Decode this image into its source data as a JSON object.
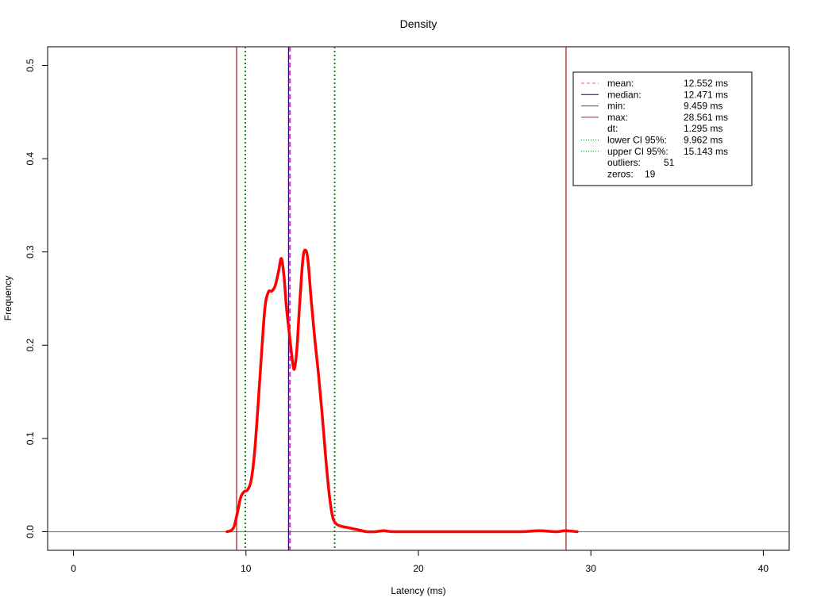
{
  "chart_data": {
    "type": "line",
    "title": "Density",
    "xlabel": "Latency (ms)",
    "ylabel": "Frequency",
    "xlim": [
      -1.5,
      41.5
    ],
    "ylim": [
      -0.02,
      0.52
    ],
    "x_ticks": [
      0,
      10,
      20,
      30,
      40
    ],
    "x_tick_labels": [
      "0",
      "10",
      "20",
      "30",
      "40"
    ],
    "y_ticks": [
      0.0,
      0.1,
      0.2,
      0.3,
      0.4,
      0.5
    ],
    "y_tick_labels": [
      "0.0",
      "0.1",
      "0.2",
      "0.3",
      "0.4",
      "0.5"
    ],
    "grid": false,
    "series": [
      {
        "color": "#ff0000",
        "points": [
          [
            8.9,
            0.0
          ],
          [
            9.1,
            0.001
          ],
          [
            9.3,
            0.005
          ],
          [
            9.5,
            0.02
          ],
          [
            9.7,
            0.037
          ],
          [
            9.9,
            0.043
          ],
          [
            10.1,
            0.045
          ],
          [
            10.3,
            0.055
          ],
          [
            10.5,
            0.085
          ],
          [
            10.7,
            0.135
          ],
          [
            10.9,
            0.19
          ],
          [
            11.1,
            0.24
          ],
          [
            11.3,
            0.257
          ],
          [
            11.5,
            0.258
          ],
          [
            11.7,
            0.264
          ],
          [
            11.9,
            0.28
          ],
          [
            12.05,
            0.293
          ],
          [
            12.2,
            0.275
          ],
          [
            12.35,
            0.24
          ],
          [
            12.5,
            0.215
          ],
          [
            12.65,
            0.19
          ],
          [
            12.8,
            0.174
          ],
          [
            12.95,
            0.195
          ],
          [
            13.1,
            0.24
          ],
          [
            13.3,
            0.292
          ],
          [
            13.45,
            0.302
          ],
          [
            13.6,
            0.29
          ],
          [
            13.8,
            0.245
          ],
          [
            14.0,
            0.205
          ],
          [
            14.2,
            0.17
          ],
          [
            14.4,
            0.13
          ],
          [
            14.6,
            0.085
          ],
          [
            14.8,
            0.045
          ],
          [
            15.0,
            0.018
          ],
          [
            15.2,
            0.009
          ],
          [
            15.5,
            0.006
          ],
          [
            16.0,
            0.004
          ],
          [
            16.5,
            0.002
          ],
          [
            17.0,
            0.0
          ],
          [
            17.5,
            0.0
          ],
          [
            18.0,
            0.001
          ],
          [
            18.5,
            0.0
          ],
          [
            20.0,
            0.0
          ],
          [
            22.0,
            0.0
          ],
          [
            24.0,
            0.0
          ],
          [
            26.0,
            0.0
          ],
          [
            27.0,
            0.001
          ],
          [
            28.0,
            0.0
          ],
          [
            28.5,
            0.001
          ],
          [
            29.2,
            0.0
          ]
        ]
      }
    ],
    "vlines": [
      {
        "key": "min",
        "x": 9.459,
        "color": "#a52a2a",
        "dash": "solid"
      },
      {
        "key": "lower_ci",
        "x": 9.962,
        "color": "#008000",
        "dash": "dotted"
      },
      {
        "key": "median",
        "x": 12.471,
        "color": "#0000ff",
        "dash": "solid"
      },
      {
        "key": "mean",
        "x": 12.552,
        "color": "#ff00ff",
        "dash": "dashed"
      },
      {
        "key": "upper_ci",
        "x": 15.143,
        "color": "#008000",
        "dash": "dotted"
      },
      {
        "key": "max",
        "x": 28.561,
        "color": "#a52a2a",
        "dash": "solid"
      }
    ],
    "hline": {
      "y": 0.0,
      "color": "#808080"
    },
    "legend": {
      "placement": "top-right",
      "entries": [
        {
          "label": "mean:",
          "value": "12.552 ms",
          "color": "#ff4466",
          "dash": "dashed"
        },
        {
          "label": "median:",
          "value": "12.471 ms",
          "color": "#00008b",
          "dash": "solid"
        },
        {
          "label": "min:",
          "value": "9.459 ms",
          "color": "#a52a2a",
          "dash": "solid"
        },
        {
          "label": "max:",
          "value": "28.561 ms",
          "color": "#a52a2a",
          "dash": "solid"
        },
        {
          "label": "dt:",
          "value": "1.295 ms",
          "color": null,
          "dash": null
        },
        {
          "label": "lower CI 95%:",
          "value": "9.962 ms",
          "color": "#008000",
          "dash": "dotted"
        },
        {
          "label": "upper CI 95%:",
          "value": "15.143 ms",
          "color": "#008000",
          "dash": "dotted"
        },
        {
          "label": "outliers:",
          "value": "51",
          "color": null,
          "dash": null
        },
        {
          "label": "zeros:",
          "value": "19",
          "color": null,
          "dash": null
        }
      ]
    }
  }
}
